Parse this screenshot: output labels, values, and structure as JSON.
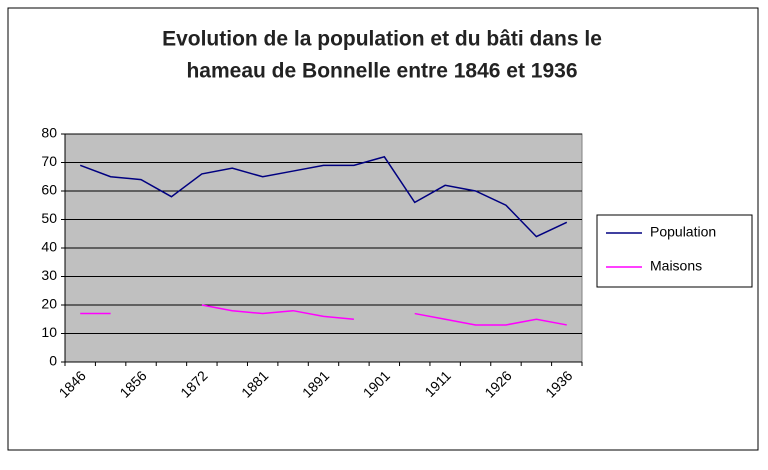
{
  "chart_data": {
    "type": "line",
    "title": "Evolution de la population et du bâti dans le hameau de Bonnelle entre 1846 et 1936",
    "title_lines": [
      "Evolution de la population et du bâti dans le",
      "hameau de Bonnelle entre 1846 et 1936"
    ],
    "categories": [
      "1846",
      null,
      "1856",
      null,
      "1872",
      null,
      "1881",
      null,
      "1891",
      null,
      "1901",
      null,
      "1911",
      null,
      "1926",
      null,
      "1936"
    ],
    "series": [
      {
        "name": "Population",
        "color": "#000080",
        "values": [
          69,
          65,
          64,
          58,
          66,
          68,
          65,
          67,
          69,
          69,
          72,
          56,
          62,
          60,
          55,
          44,
          49
        ]
      },
      {
        "name": "Maisons",
        "color": "#ff00ff",
        "values": [
          17,
          17,
          null,
          null,
          20,
          18,
          17,
          18,
          16,
          15,
          null,
          17,
          15,
          13,
          13,
          15,
          13
        ]
      }
    ],
    "ylim": [
      0,
      80
    ],
    "yticks": [
      0,
      10,
      20,
      30,
      40,
      50,
      60,
      70,
      80
    ],
    "grid": true,
    "legend": "right",
    "plot_color": "#c0c0c0"
  }
}
